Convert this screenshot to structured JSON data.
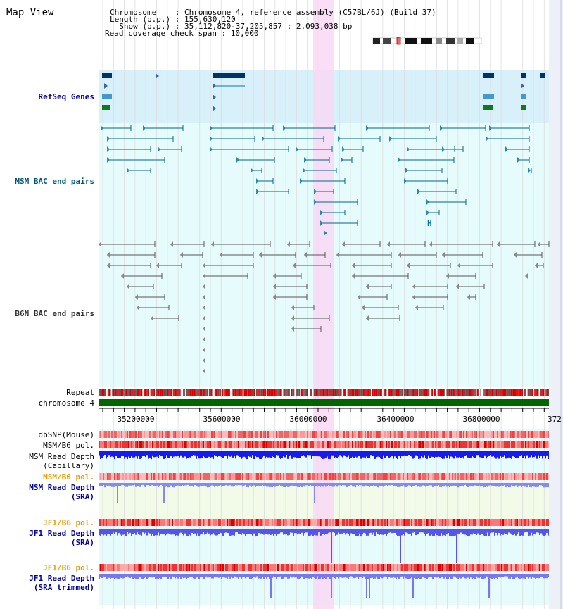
{
  "view": {
    "title": "Map View"
  },
  "info": {
    "chromosome": "Chromosome    : Chromosome 4, reference assembly (C57BL/6J) (Build 37)",
    "length": "Length (b.p.) : 155,630,120",
    "show": "  Show (b.p.) : 35,112,820-37,205,857 : 2,093,038 bp",
    "coverage": "Read coverage check span : 10,000"
  },
  "tracks": {
    "refseq": "RefSeq Genes",
    "msm_bac": "MSM BAC end pairs",
    "b6n_bac": "B6N BAC end pairs",
    "repeat": "Repeat",
    "chromosome": "chromosome 4",
    "dbsnp": "dbSNP(Mouse)",
    "msm_b6_pol_1": "MSM/B6 pol.",
    "msm_depth_cap_1": "MSM Read Depth",
    "msm_depth_cap_2": "(Capillary)",
    "msm_b6_pol_2": "MSM/B6 pol.",
    "msm_depth_sra_1": "MSM Read Depth",
    "msm_depth_sra_2": "(SRA)",
    "jf1_b6_pol_1": "JF1/B6 pol.",
    "jf1_depth_sra_1": "JF1 Read Depth",
    "jf1_depth_sra_2": "(SRA)",
    "jf1_b6_pol_2": "JF1/B6 pol.",
    "jf1_depth_trim_1": "JF1 Read Depth",
    "jf1_depth_trim_2": "(SRA trimmed)"
  },
  "axis": {
    "ticks": [
      "35200000",
      "35600000",
      "36000000",
      "36400000",
      "36800000",
      "372"
    ]
  },
  "colors": {
    "refseq_band": "#d8f0fa",
    "track_band": "#e6fbfb",
    "highlight": "#f8d8f4",
    "label_blue": "#000099",
    "label_teal": "#005577",
    "label_orange": "#ee9900",
    "msm_gene": "#0077aa",
    "b6n_gene": "#666666",
    "chromosome_bar": "#006600",
    "repeat_red": "#dd0000",
    "depth_dark": "#1a1aee",
    "depth_light": "#8888ee"
  },
  "misc": {
    "marker_h": "H"
  }
}
